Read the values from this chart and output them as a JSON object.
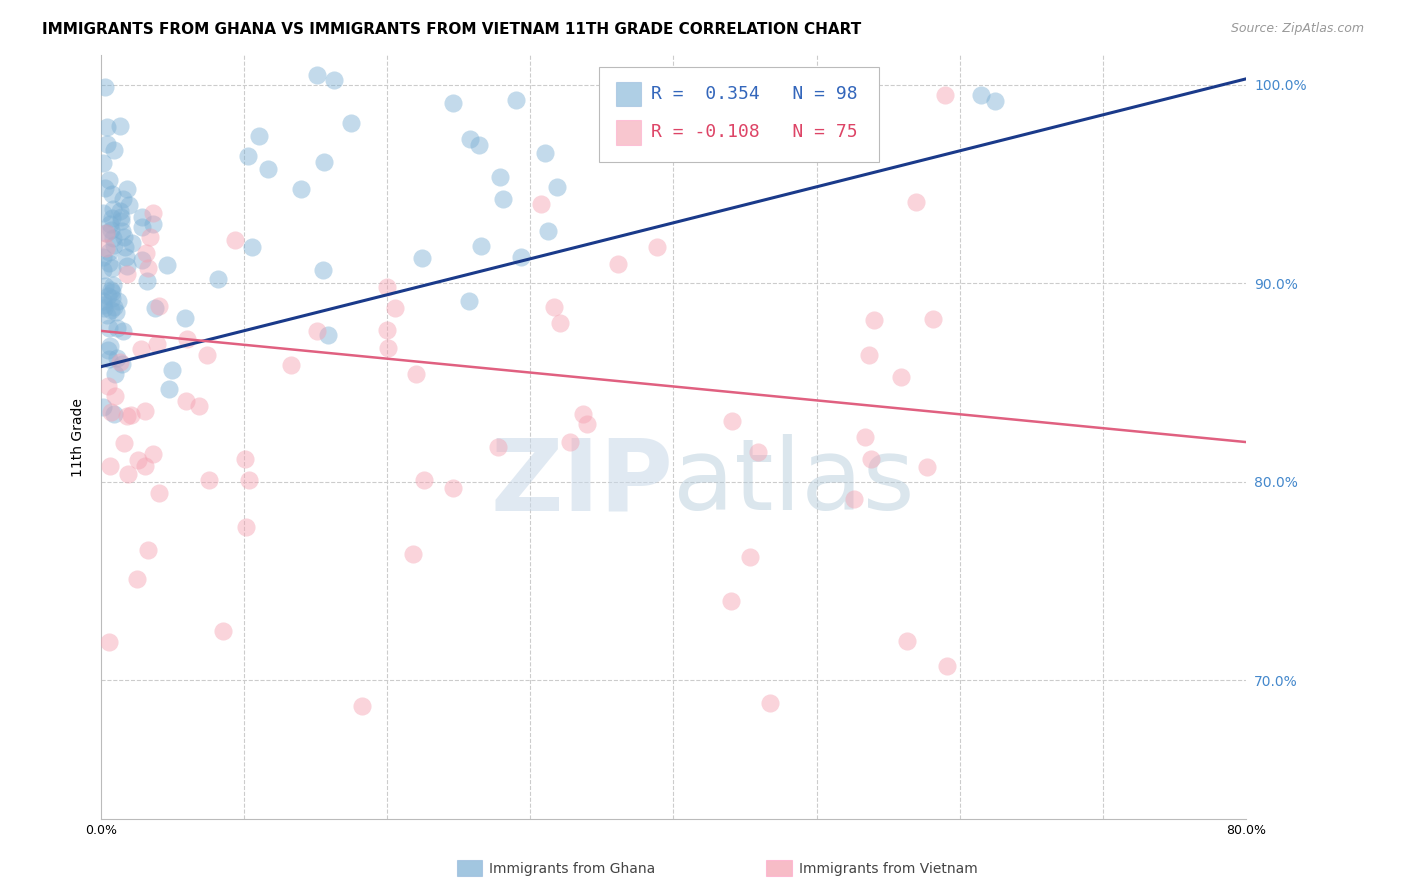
{
  "title": "IMMIGRANTS FROM GHANA VS IMMIGRANTS FROM VIETNAM 11TH GRADE CORRELATION CHART",
  "source": "Source: ZipAtlas.com",
  "ylabel": "11th Grade",
  "watermark": "ZIPatlas",
  "legend_r1": "R =  0.354",
  "legend_n1": "N = 98",
  "legend_r2": "R = -0.108",
  "legend_n2": "N = 75",
  "legend_label1": "Immigrants from Ghana",
  "legend_label2": "Immigrants from Vietnam",
  "xlim": [
    0.0,
    0.8
  ],
  "ylim": [
    0.63,
    1.015
  ],
  "yticks": [
    0.7,
    0.8,
    0.9,
    1.0
  ],
  "ytick_labels": [
    "70.0%",
    "80.0%",
    "90.0%",
    "100.0%"
  ],
  "xtick_positions": [
    0.0,
    0.1,
    0.2,
    0.3,
    0.4,
    0.5,
    0.6,
    0.7,
    0.8
  ],
  "xtick_labels": [
    "0.0%",
    "",
    "",
    "",
    "",
    "",
    "",
    "",
    "80.0%"
  ],
  "ghana_color": "#7BAFD4",
  "vietnam_color": "#F4A0B0",
  "ghana_line_color": "#1a3a8a",
  "vietnam_line_color": "#E06080",
  "ghana_trend_x": [
    0.0,
    0.8
  ],
  "ghana_trend_y": [
    0.858,
    1.003
  ],
  "vietnam_trend_x": [
    0.0,
    0.8
  ],
  "vietnam_trend_y": [
    0.876,
    0.82
  ],
  "scatter_size": 170,
  "scatter_alpha": 0.45,
  "grid_color": "#CCCCCC",
  "title_fontsize": 11,
  "source_fontsize": 9,
  "tick_fontsize": 9,
  "legend_fontsize": 13
}
